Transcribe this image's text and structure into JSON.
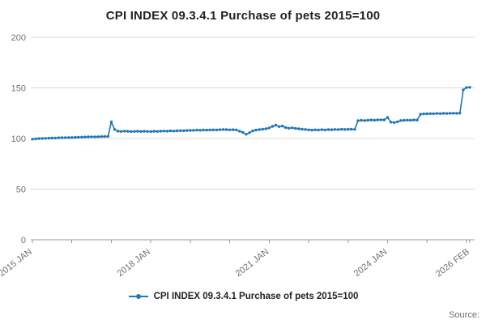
{
  "title": "CPI INDEX 09.3.4.1 Purchase of pets 2015=100",
  "legend": {
    "label": "CPI INDEX 09.3.4.1 Purchase of pets 2015=100"
  },
  "source": {
    "label": "Source:"
  },
  "colors": {
    "line": "#1f77b4",
    "grid": "#d9d9d9",
    "axis": "#9b9b9b",
    "tick_text": "#707070",
    "title_text": "#222222"
  },
  "chart_data": {
    "type": "line",
    "title": "CPI INDEX 09.3.4.1 Purchase of pets 2015=100",
    "xlabel": "",
    "ylabel": "",
    "frequency": "monthly",
    "x_start": "2015 JAN",
    "x_end": "2026 FEB",
    "ylim": [
      0,
      200
    ],
    "y_ticks": [
      0,
      50,
      100,
      150,
      200
    ],
    "grid": true,
    "legend_position": "bottom",
    "x_tick_labels": [
      {
        "index": 0,
        "label": "2015 JAN"
      },
      {
        "index": 36,
        "label": "2018 JAN"
      },
      {
        "index": 72,
        "label": "2021 JAN"
      },
      {
        "index": 108,
        "label": "2024 JAN"
      },
      {
        "index": 133,
        "label": "2026 FEB"
      }
    ],
    "tick_indices": [
      0,
      12,
      24,
      36,
      48,
      60,
      72,
      84,
      96,
      108,
      120,
      132,
      133
    ],
    "series": [
      {
        "name": "CPI INDEX 09.3.4.1 Purchase of pets 2015=100",
        "values": [
          99.4,
          99.6,
          99.9,
          100.1,
          100.2,
          100.3,
          100.4,
          100.5,
          100.7,
          100.8,
          100.9,
          101.0,
          101.0,
          101.1,
          101.3,
          101.4,
          101.5,
          101.6,
          101.7,
          101.7,
          101.8,
          101.9,
          102.0,
          102.1,
          116.5,
          109.0,
          107.2,
          107.0,
          107.3,
          107.1,
          106.9,
          107.0,
          107.2,
          107.0,
          107.1,
          107.0,
          106.9,
          107.1,
          107.0,
          107.2,
          107.4,
          107.3,
          107.5,
          107.4,
          107.6,
          107.8,
          107.7,
          107.9,
          108.0,
          108.1,
          108.3,
          108.2,
          108.4,
          108.3,
          108.5,
          108.6,
          108.5,
          108.7,
          108.9,
          108.8,
          108.6,
          108.7,
          108.5,
          107.2,
          106.0,
          104.2,
          105.8,
          107.5,
          108.3,
          108.8,
          109.2,
          109.6,
          110.5,
          112.0,
          113.2,
          111.8,
          112.3,
          110.8,
          110.2,
          110.6,
          110.0,
          109.6,
          109.2,
          109.0,
          108.6,
          108.3,
          108.6,
          108.4,
          108.7,
          108.5,
          108.8,
          108.7,
          109.0,
          108.9,
          109.1,
          109.0,
          109.1,
          109.2,
          109.0,
          117.6,
          118.0,
          117.8,
          118.1,
          118.3,
          118.1,
          118.4,
          118.5,
          118.4,
          120.8,
          116.2,
          115.8,
          116.5,
          117.8,
          118.0,
          118.2,
          118.0,
          118.3,
          118.2,
          124.0,
          124.3,
          124.4,
          124.6,
          124.5,
          124.7,
          124.6,
          124.8,
          124.7,
          124.9,
          125.0,
          124.9,
          125.1,
          148.0,
          150.3,
          150.6
        ]
      }
    ]
  }
}
